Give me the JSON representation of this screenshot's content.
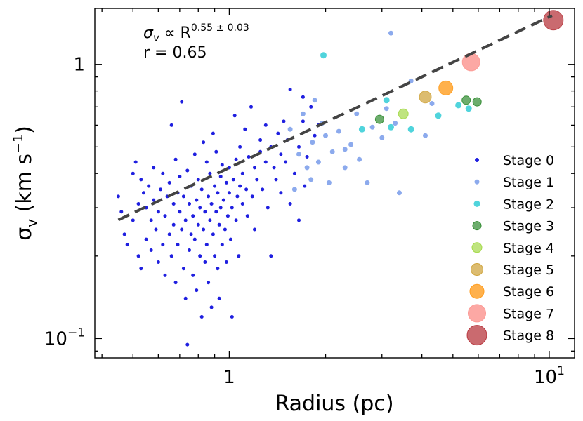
{
  "chart_data": {
    "type": "scatter",
    "xscale": "log",
    "yscale": "log",
    "xlim": [
      0.38,
      12.0
    ],
    "ylim": [
      0.085,
      1.6
    ],
    "xlabel": "Radius (pc)",
    "ylabel": "σ_v (km s⁻¹)",
    "xticks": [
      {
        "value": 1,
        "base": "1",
        "exp": ""
      },
      {
        "value": 10,
        "base": "10",
        "exp": "1"
      }
    ],
    "yticks": [
      {
        "value": 0.1,
        "base": "10",
        "exp": "−1"
      },
      {
        "value": 1,
        "base": "1",
        "exp": ""
      }
    ],
    "annotation": {
      "formula_lhs": "σ",
      "formula_sub": "v",
      "formula_mid": " ∝  R",
      "formula_exp": "0.55 ± 0.03",
      "r_text": "r = 0.65"
    },
    "fit": {
      "slope": 0.55,
      "intercept": 0.42,
      "x_range": [
        0.45,
        10.2
      ],
      "color": "#444444"
    },
    "legend_position": "lower-right",
    "series": [
      {
        "name": "Stage 0",
        "color": "#1f1fe0",
        "size": 2.5,
        "alpha": 1.0,
        "points": [
          [
            0.45,
            0.33
          ],
          [
            0.46,
            0.29
          ],
          [
            0.47,
            0.24
          ],
          [
            0.48,
            0.22
          ],
          [
            0.5,
            0.4
          ],
          [
            0.5,
            0.27
          ],
          [
            0.51,
            0.44
          ],
          [
            0.52,
            0.31
          ],
          [
            0.52,
            0.2
          ],
          [
            0.53,
            0.38
          ],
          [
            0.53,
            0.18
          ],
          [
            0.54,
            0.34
          ],
          [
            0.55,
            0.3
          ],
          [
            0.55,
            0.23
          ],
          [
            0.56,
            0.36
          ],
          [
            0.57,
            0.27
          ],
          [
            0.57,
            0.21
          ],
          [
            0.58,
            0.42
          ],
          [
            0.58,
            0.32
          ],
          [
            0.59,
            0.25
          ],
          [
            0.6,
            0.19
          ],
          [
            0.6,
            0.29
          ],
          [
            0.61,
            0.35
          ],
          [
            0.62,
            0.4
          ],
          [
            0.62,
            0.22
          ],
          [
            0.63,
            0.28
          ],
          [
            0.63,
            0.17
          ],
          [
            0.64,
            0.33
          ],
          [
            0.65,
            0.24
          ],
          [
            0.65,
            0.37
          ],
          [
            0.66,
            0.2
          ],
          [
            0.66,
            0.6
          ],
          [
            0.67,
            0.31
          ],
          [
            0.67,
            0.26
          ],
          [
            0.68,
            0.45
          ],
          [
            0.68,
            0.16
          ],
          [
            0.69,
            0.34
          ],
          [
            0.69,
            0.22
          ],
          [
            0.7,
            0.29
          ],
          [
            0.7,
            0.39
          ],
          [
            0.71,
            0.73
          ],
          [
            0.71,
            0.25
          ],
          [
            0.72,
            0.18
          ],
          [
            0.72,
            0.33
          ],
          [
            0.73,
            0.27
          ],
          [
            0.73,
            0.14
          ],
          [
            0.74,
            0.095
          ],
          [
            0.74,
            0.41
          ],
          [
            0.75,
            0.21
          ],
          [
            0.75,
            0.31
          ],
          [
            0.76,
            0.24
          ],
          [
            0.76,
            0.36
          ],
          [
            0.77,
            0.17
          ],
          [
            0.77,
            0.28
          ],
          [
            0.78,
            0.47
          ],
          [
            0.78,
            0.23
          ],
          [
            0.79,
            0.32
          ],
          [
            0.79,
            0.15
          ],
          [
            0.8,
            0.26
          ],
          [
            0.8,
            0.38
          ],
          [
            0.81,
            0.2
          ],
          [
            0.81,
            0.3
          ],
          [
            0.82,
            0.12
          ],
          [
            0.82,
            0.35
          ],
          [
            0.83,
            0.25
          ],
          [
            0.83,
            0.52
          ],
          [
            0.84,
            0.29
          ],
          [
            0.84,
            0.19
          ],
          [
            0.85,
            0.44
          ],
          [
            0.85,
            0.22
          ],
          [
            0.86,
            0.33
          ],
          [
            0.86,
            0.16
          ],
          [
            0.87,
            0.27
          ],
          [
            0.87,
            0.4
          ],
          [
            0.88,
            0.13
          ],
          [
            0.88,
            0.31
          ],
          [
            0.89,
            0.24
          ],
          [
            0.89,
            0.56
          ],
          [
            0.9,
            0.36
          ],
          [
            0.9,
            0.2
          ],
          [
            0.91,
            0.29
          ],
          [
            0.91,
            0.48
          ],
          [
            0.92,
            0.18
          ],
          [
            0.92,
            0.34
          ],
          [
            0.93,
            0.26
          ],
          [
            0.93,
            0.14
          ],
          [
            0.94,
            0.39
          ],
          [
            0.94,
            0.3
          ],
          [
            0.95,
            0.22
          ],
          [
            0.95,
            0.43
          ],
          [
            0.96,
            0.32
          ],
          [
            0.97,
            0.25
          ],
          [
            0.98,
            0.37
          ],
          [
            0.98,
            0.19
          ],
          [
            0.99,
            0.28
          ],
          [
            1.0,
            0.42
          ],
          [
            1.0,
            0.34
          ],
          [
            1.01,
            0.23
          ],
          [
            1.02,
            0.12
          ],
          [
            1.02,
            0.3
          ],
          [
            1.03,
            0.38
          ],
          [
            1.04,
            0.65
          ],
          [
            1.05,
            0.27
          ],
          [
            1.05,
            0.45
          ],
          [
            1.06,
            0.33
          ],
          [
            1.07,
            0.2
          ],
          [
            1.08,
            0.36
          ],
          [
            1.08,
            0.5
          ],
          [
            1.1,
            0.31
          ],
          [
            1.1,
            0.4
          ],
          [
            1.12,
            0.58
          ],
          [
            1.13,
            0.35
          ],
          [
            1.14,
            0.28
          ],
          [
            1.15,
            0.46
          ],
          [
            1.17,
            0.7
          ],
          [
            1.18,
            0.33
          ],
          [
            1.2,
            0.42
          ],
          [
            1.2,
            0.25
          ],
          [
            1.22,
            0.38
          ],
          [
            1.25,
            0.53
          ],
          [
            1.25,
            0.48
          ],
          [
            1.27,
            0.35
          ],
          [
            1.3,
            0.6
          ],
          [
            1.3,
            0.44
          ],
          [
            1.32,
            0.3
          ],
          [
            1.35,
            0.5
          ],
          [
            1.35,
            0.2
          ],
          [
            1.38,
            0.42
          ],
          [
            1.4,
            0.38
          ],
          [
            1.42,
            0.56
          ],
          [
            1.45,
            0.47
          ],
          [
            1.45,
            0.34
          ],
          [
            1.48,
            0.62
          ],
          [
            1.5,
            0.44
          ],
          [
            1.52,
            0.53
          ],
          [
            1.55,
            0.31
          ],
          [
            1.55,
            0.81
          ],
          [
            1.6,
            0.4
          ],
          [
            1.65,
            0.5
          ],
          [
            1.65,
            0.27
          ],
          [
            1.7,
            0.62
          ],
          [
            1.7,
            0.76
          ],
          [
            1.72,
            0.36
          ],
          [
            1.75,
            0.46
          ],
          [
            1.8,
            0.7
          ],
          [
            1.85,
            0.55
          ],
          [
            1.9,
            0.6
          ]
        ]
      },
      {
        "name": "Stage 1",
        "color": "#6f95e8",
        "size": 3.5,
        "alpha": 0.8,
        "points": [
          [
            1.55,
            0.58
          ],
          [
            1.6,
            0.35
          ],
          [
            1.65,
            0.47
          ],
          [
            1.7,
            0.66
          ],
          [
            1.75,
            0.42
          ],
          [
            1.8,
            0.38
          ],
          [
            1.82,
            0.52
          ],
          [
            1.85,
            0.74
          ],
          [
            1.9,
            0.44
          ],
          [
            1.95,
            0.61
          ],
          [
            2.0,
            0.55
          ],
          [
            2.05,
            0.37
          ],
          [
            2.1,
            0.48
          ],
          [
            2.2,
            0.57
          ],
          [
            2.3,
            0.42
          ],
          [
            2.4,
            0.51
          ],
          [
            2.5,
            0.66
          ],
          [
            2.55,
            0.45
          ],
          [
            2.7,
            0.37
          ],
          [
            2.8,
            0.59
          ],
          [
            3.0,
            0.54
          ],
          [
            3.1,
            0.69
          ],
          [
            3.2,
            1.3
          ],
          [
            3.4,
            0.34
          ],
          [
            3.7,
            0.87
          ],
          [
            4.1,
            0.55
          ],
          [
            4.3,
            0.72
          ],
          [
            3.3,
            0.61
          ],
          [
            2.3,
            0.49
          ]
        ]
      },
      {
        "name": "Stage 2",
        "color": "#16c6d0",
        "size": 4.5,
        "alpha": 0.75,
        "points": [
          [
            1.97,
            1.08
          ],
          [
            2.6,
            0.58
          ],
          [
            3.1,
            0.74
          ],
          [
            3.2,
            0.59
          ],
          [
            3.7,
            0.58
          ],
          [
            4.5,
            0.65
          ],
          [
            5.2,
            0.71
          ],
          [
            5.6,
            0.69
          ]
        ]
      },
      {
        "name": "Stage 3",
        "color": "#2f8a2f",
        "size": 6,
        "alpha": 0.7,
        "points": [
          [
            2.95,
            0.63
          ],
          [
            5.5,
            0.74
          ],
          [
            5.95,
            0.73
          ]
        ]
      },
      {
        "name": "Stage 4",
        "color": "#a4d948",
        "size": 7,
        "alpha": 0.7,
        "points": [
          [
            3.5,
            0.66
          ]
        ]
      },
      {
        "name": "Stage 5",
        "color": "#d0a640",
        "size": 8.5,
        "alpha": 0.75,
        "points": [
          [
            4.1,
            0.76
          ]
        ]
      },
      {
        "name": "Stage 6",
        "color": "#ff9d1f",
        "size": 10,
        "alpha": 0.8,
        "points": [
          [
            4.75,
            0.82
          ]
        ]
      },
      {
        "name": "Stage 7",
        "color": "#fc9994",
        "size": 12.5,
        "alpha": 0.85,
        "points": [
          [
            5.7,
            1.02
          ]
        ]
      },
      {
        "name": "Stage 8",
        "color": "#b8383f",
        "size": 14,
        "alpha": 0.75,
        "points": [
          [
            10.3,
            1.45
          ]
        ]
      }
    ]
  }
}
